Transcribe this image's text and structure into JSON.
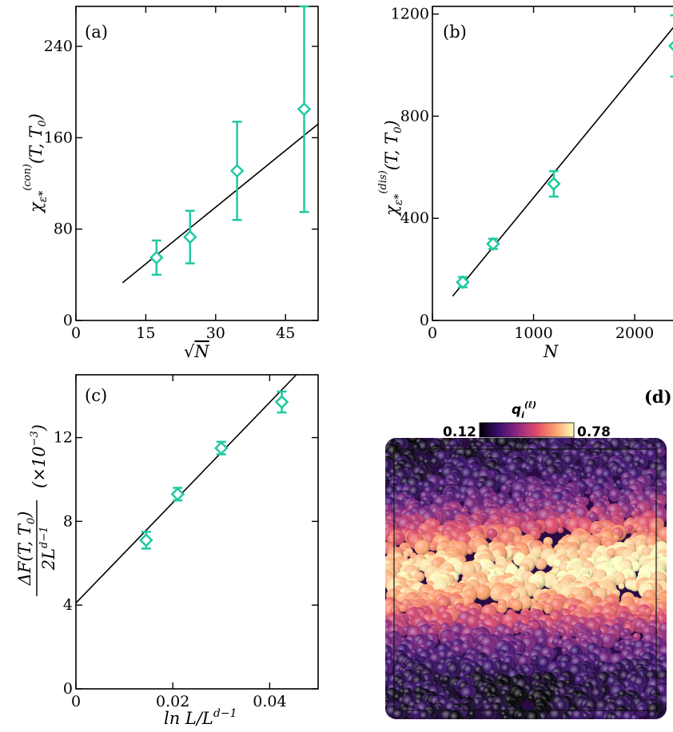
{
  "chart_data": [
    {
      "panel": "(a)",
      "type": "scatter",
      "xlabel": "√N",
      "ylabel": "χ_ε*^(con)(T, T₀)",
      "xlim": [
        0,
        52
      ],
      "ylim": [
        0,
        275
      ],
      "xticks": [
        "0",
        "15",
        "30",
        "45"
      ],
      "yticks": [
        "0",
        "80",
        "160",
        "240"
      ],
      "points": [
        {
          "x": 17.3,
          "y": 55,
          "err": 15
        },
        {
          "x": 24.5,
          "y": 73,
          "err": 23
        },
        {
          "x": 34.6,
          "y": 131,
          "err": 43
        },
        {
          "x": 49.0,
          "y": 185,
          "err": 90
        }
      ],
      "fit": {
        "x": [
          10,
          52
        ],
        "y": [
          33,
          172
        ]
      },
      "marker_color": "#1fc9a0"
    },
    {
      "panel": "(b)",
      "type": "scatter",
      "xlabel": "N",
      "ylabel": "χ_ε*^(dis)(T, T₀)",
      "xlim": [
        0,
        2450
      ],
      "ylim": [
        0,
        1230
      ],
      "xticks": [
        "0",
        "1000",
        "2000"
      ],
      "yticks": [
        "0",
        "400",
        "800",
        "1200"
      ],
      "points": [
        {
          "x": 300,
          "y": 150,
          "err": 20
        },
        {
          "x": 600,
          "y": 300,
          "err": 20
        },
        {
          "x": 1200,
          "y": 535,
          "err": 50
        },
        {
          "x": 2400,
          "y": 1075,
          "err": 120
        }
      ],
      "fit": {
        "x": [
          200,
          2450
        ],
        "y": [
          95,
          1180
        ]
      },
      "marker_color": "#1fc9a0"
    },
    {
      "panel": "(c)",
      "type": "scatter",
      "xlabel": "ln L/L^(d−1)",
      "ylabel": "ΔF(T, T₀) / 2L^(d−1) (×10⁻³)",
      "xlim": [
        0,
        0.05
      ],
      "ylim": [
        0,
        15
      ],
      "xticks": [
        "0",
        "0.02",
        "0.04"
      ],
      "yticks": [
        "0",
        "4",
        "8",
        "12"
      ],
      "points": [
        {
          "x": 0.0145,
          "y": 7.1,
          "err": 0.4
        },
        {
          "x": 0.021,
          "y": 9.3,
          "err": 0.3
        },
        {
          "x": 0.03,
          "y": 11.5,
          "err": 0.3
        },
        {
          "x": 0.0425,
          "y": 13.7,
          "err": 0.5
        }
      ],
      "fit": {
        "x": [
          0.0,
          0.0455
        ],
        "y": [
          4.1,
          15.0
        ]
      },
      "marker_color": "#1fc9a0"
    }
  ],
  "panel_d": {
    "label": "(d)",
    "colorbar_title": "q_i^(ℓ)",
    "colorbar_min": "0.12",
    "colorbar_max": "0.78",
    "colormap": [
      "#000004",
      "#3b0f70",
      "#8c2981",
      "#de4968",
      "#fe9f6d",
      "#fcfdbf"
    ]
  }
}
